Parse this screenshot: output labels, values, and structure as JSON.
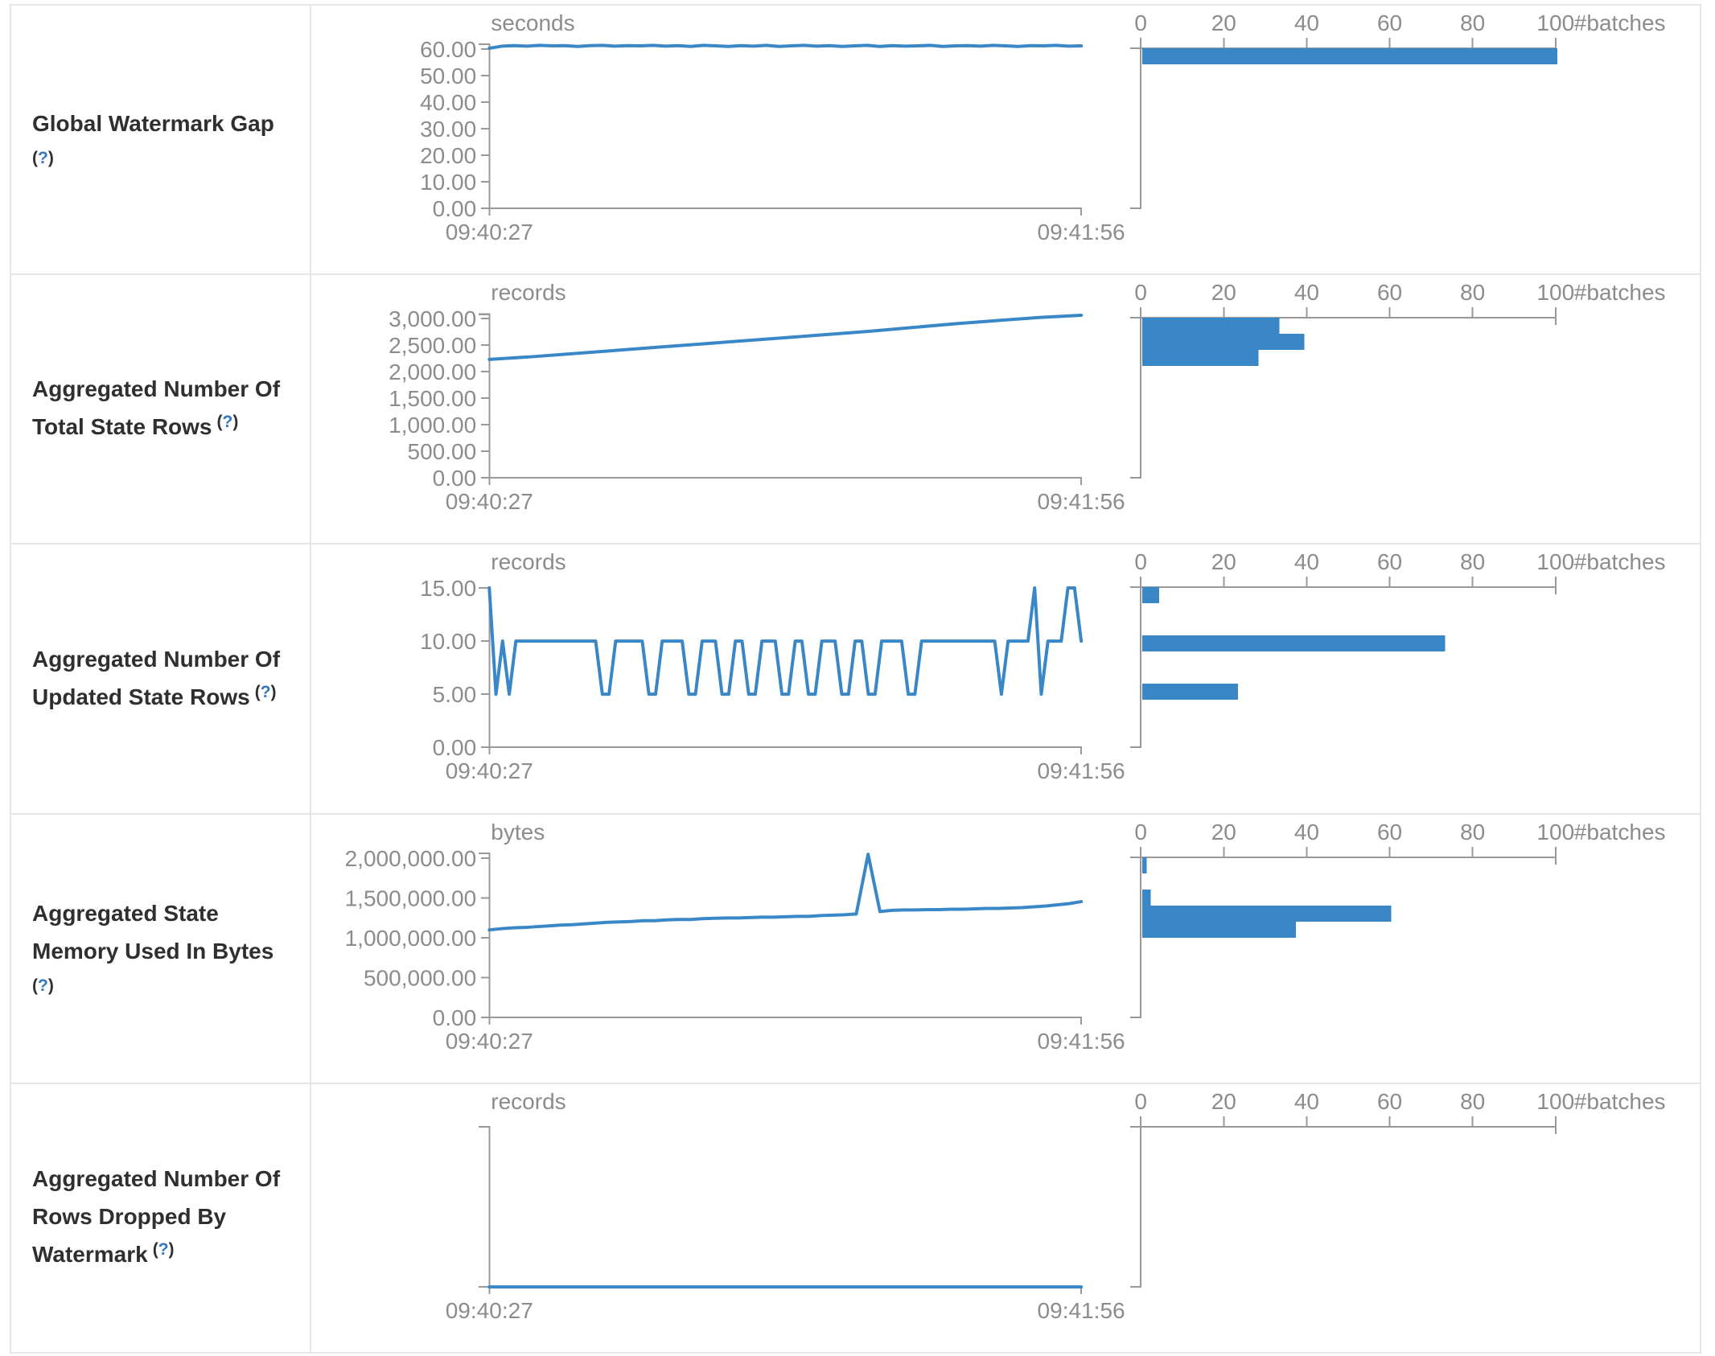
{
  "colors": {
    "line_blue": "#3a87c8",
    "bar_blue": "#3a87c8",
    "axis_gray": "#999999",
    "tick_text_gray": "#8c8c8c",
    "label_dark": "#2f2f2f",
    "help_link_blue": "#3478be",
    "border_gray": "#e4e7e9"
  },
  "help": {
    "open": "(",
    "q": "?",
    "close": ")"
  },
  "axis_times": {
    "start": "09:40:27",
    "end": "09:41:56"
  },
  "hist": {
    "batches_label": "#batches",
    "tick_values": [
      0,
      20,
      40,
      60,
      80,
      100
    ],
    "tick_labels": [
      "0",
      "20",
      "40",
      "60",
      "80",
      "100"
    ]
  },
  "chart_data": [
    {
      "type": "line+bar-histogram",
      "name": "global-watermark-gap",
      "label_lines": [
        "Global Watermark Gap"
      ],
      "help_own_line": true,
      "unit": "seconds",
      "x_range": [
        "09:40:27",
        "09:41:56"
      ],
      "ylim": [
        0,
        60
      ],
      "tick_max": 60,
      "domain_max": 61.8,
      "y_ticks": [
        {
          "v": 0,
          "label": "0.00"
        },
        {
          "v": 10,
          "label": "10.00"
        },
        {
          "v": 20,
          "label": "20.00"
        },
        {
          "v": 30,
          "label": "30.00"
        },
        {
          "v": 40,
          "label": "40.00"
        },
        {
          "v": 50,
          "label": "50.00"
        },
        {
          "v": 60,
          "label": "60.00"
        }
      ],
      "has_y_ticks": true,
      "values": [
        60.3,
        61.1,
        61.3,
        61.1,
        61.4,
        61.2,
        61.3,
        61.0,
        61.3,
        61.4,
        61.1,
        61.3,
        61.2,
        61.4,
        61.1,
        61.3,
        61.0,
        61.4,
        61.2,
        61.0,
        61.3,
        61.1,
        61.4,
        61.0,
        61.2,
        61.4,
        61.1,
        61.3,
        61.0,
        61.2,
        61.4,
        61.0,
        61.3,
        61.1,
        61.2,
        61.4,
        61.0,
        61.2,
        61.3,
        61.1,
        61.4,
        61.2,
        61.0,
        61.3,
        61.2,
        61.4,
        61.1,
        61.2
      ],
      "hist_bars": [
        {
          "slot": 0,
          "count": 100
        }
      ]
    },
    {
      "type": "line+bar-histogram",
      "name": "aggregated-total-state-rows",
      "label_lines": [
        "Aggregated Number Of",
        "Total State Rows"
      ],
      "help_own_line": false,
      "unit": "records",
      "x_range": [
        "09:40:27",
        "09:41:56"
      ],
      "ylim": [
        0,
        3000
      ],
      "tick_max": 3000,
      "domain_max": 3080,
      "y_ticks": [
        {
          "v": 0,
          "label": "0.00"
        },
        {
          "v": 500,
          "label": "500.00"
        },
        {
          "v": 1000,
          "label": "1,000.00"
        },
        {
          "v": 1500,
          "label": "1,500.00"
        },
        {
          "v": 2000,
          "label": "2,000.00"
        },
        {
          "v": 2500,
          "label": "2,500.00"
        },
        {
          "v": 3000,
          "label": "3,000.00"
        }
      ],
      "has_y_ticks": true,
      "values": [
        2230,
        2280,
        2340,
        2400,
        2460,
        2520,
        2580,
        2640,
        2700,
        2760,
        2830,
        2900,
        2960,
        3020,
        3060
      ],
      "hist_bars": [
        {
          "slot": 0,
          "count": 33
        },
        {
          "slot": 1,
          "count": 39
        },
        {
          "slot": 2,
          "count": 28
        }
      ]
    },
    {
      "type": "line+bar-histogram",
      "name": "aggregated-updated-state-rows",
      "label_lines": [
        "Aggregated Number Of",
        "Updated State Rows"
      ],
      "help_own_line": false,
      "unit": "records",
      "x_range": [
        "09:40:27",
        "09:41:56"
      ],
      "ylim": [
        0,
        15
      ],
      "tick_max": 15,
      "domain_max": 15,
      "y_ticks": [
        {
          "v": 0,
          "label": "0.00"
        },
        {
          "v": 5,
          "label": "5.00"
        },
        {
          "v": 10,
          "label": "10.00"
        },
        {
          "v": 15,
          "label": "15.00"
        }
      ],
      "has_y_ticks": true,
      "values": [
        15,
        5,
        10,
        5,
        10,
        10,
        10,
        10,
        10,
        10,
        10,
        10,
        10,
        10,
        10,
        10,
        10,
        5,
        5,
        10,
        10,
        10,
        10,
        10,
        5,
        5,
        10,
        10,
        10,
        10,
        5,
        5,
        10,
        10,
        10,
        5,
        5,
        10,
        10,
        5,
        5,
        10,
        10,
        10,
        5,
        5,
        10,
        10,
        5,
        5,
        10,
        10,
        10,
        5,
        5,
        10,
        10,
        5,
        5,
        10,
        10,
        10,
        10,
        5,
        5,
        10,
        10,
        10,
        10,
        10,
        10,
        10,
        10,
        10,
        10,
        10,
        10,
        5,
        10,
        10,
        10,
        10,
        15,
        5,
        10,
        10,
        10,
        15,
        15,
        10
      ],
      "hist_bars": [
        {
          "slot": 0,
          "count": 4
        },
        {
          "slot": 3,
          "count": 73
        },
        {
          "slot": 6,
          "count": 23
        }
      ]
    },
    {
      "type": "line+bar-histogram",
      "name": "aggregated-state-memory-used",
      "label_lines": [
        "Aggregated State",
        "Memory Used In Bytes"
      ],
      "help_own_line": true,
      "unit": "bytes",
      "x_range": [
        "09:40:27",
        "09:41:56"
      ],
      "ylim": [
        0,
        2000000
      ],
      "tick_max": 2000000,
      "domain_max": 2062000,
      "y_ticks": [
        {
          "v": 0,
          "label": "0.00"
        },
        {
          "v": 500000,
          "label": "500,000.00"
        },
        {
          "v": 1000000,
          "label": "1,000,000.00"
        },
        {
          "v": 1500000,
          "label": "1,500,000.00"
        },
        {
          "v": 2000000,
          "label": "2,000,000.00"
        }
      ],
      "has_y_ticks": true,
      "values": [
        1100000,
        1115000,
        1125000,
        1130000,
        1140000,
        1150000,
        1160000,
        1165000,
        1175000,
        1185000,
        1195000,
        1200000,
        1205000,
        1215000,
        1215000,
        1225000,
        1230000,
        1230000,
        1240000,
        1245000,
        1250000,
        1250000,
        1255000,
        1260000,
        1260000,
        1265000,
        1270000,
        1270000,
        1280000,
        1285000,
        1290000,
        1300000,
        2050000,
        1330000,
        1345000,
        1350000,
        1350000,
        1355000,
        1355000,
        1360000,
        1360000,
        1365000,
        1370000,
        1370000,
        1375000,
        1380000,
        1390000,
        1400000,
        1415000,
        1430000,
        1455000
      ],
      "hist_bars": [
        {
          "slot": 0,
          "count": 1
        },
        {
          "slot": 2,
          "count": 2
        },
        {
          "slot": 3,
          "count": 60
        },
        {
          "slot": 4,
          "count": 37
        }
      ]
    },
    {
      "type": "line+bar-histogram",
      "name": "aggregated-rows-dropped-by-watermark",
      "label_lines": [
        "Aggregated Number Of",
        "Rows Dropped By",
        "Watermark"
      ],
      "help_own_line": false,
      "unit": "records",
      "x_range": [
        "09:40:27",
        "09:41:56"
      ],
      "ylim": [
        0,
        0
      ],
      "tick_max": 1,
      "domain_max": null,
      "y_ticks": [],
      "has_y_ticks": false,
      "values": [
        0,
        0
      ],
      "hist_bars": []
    }
  ]
}
